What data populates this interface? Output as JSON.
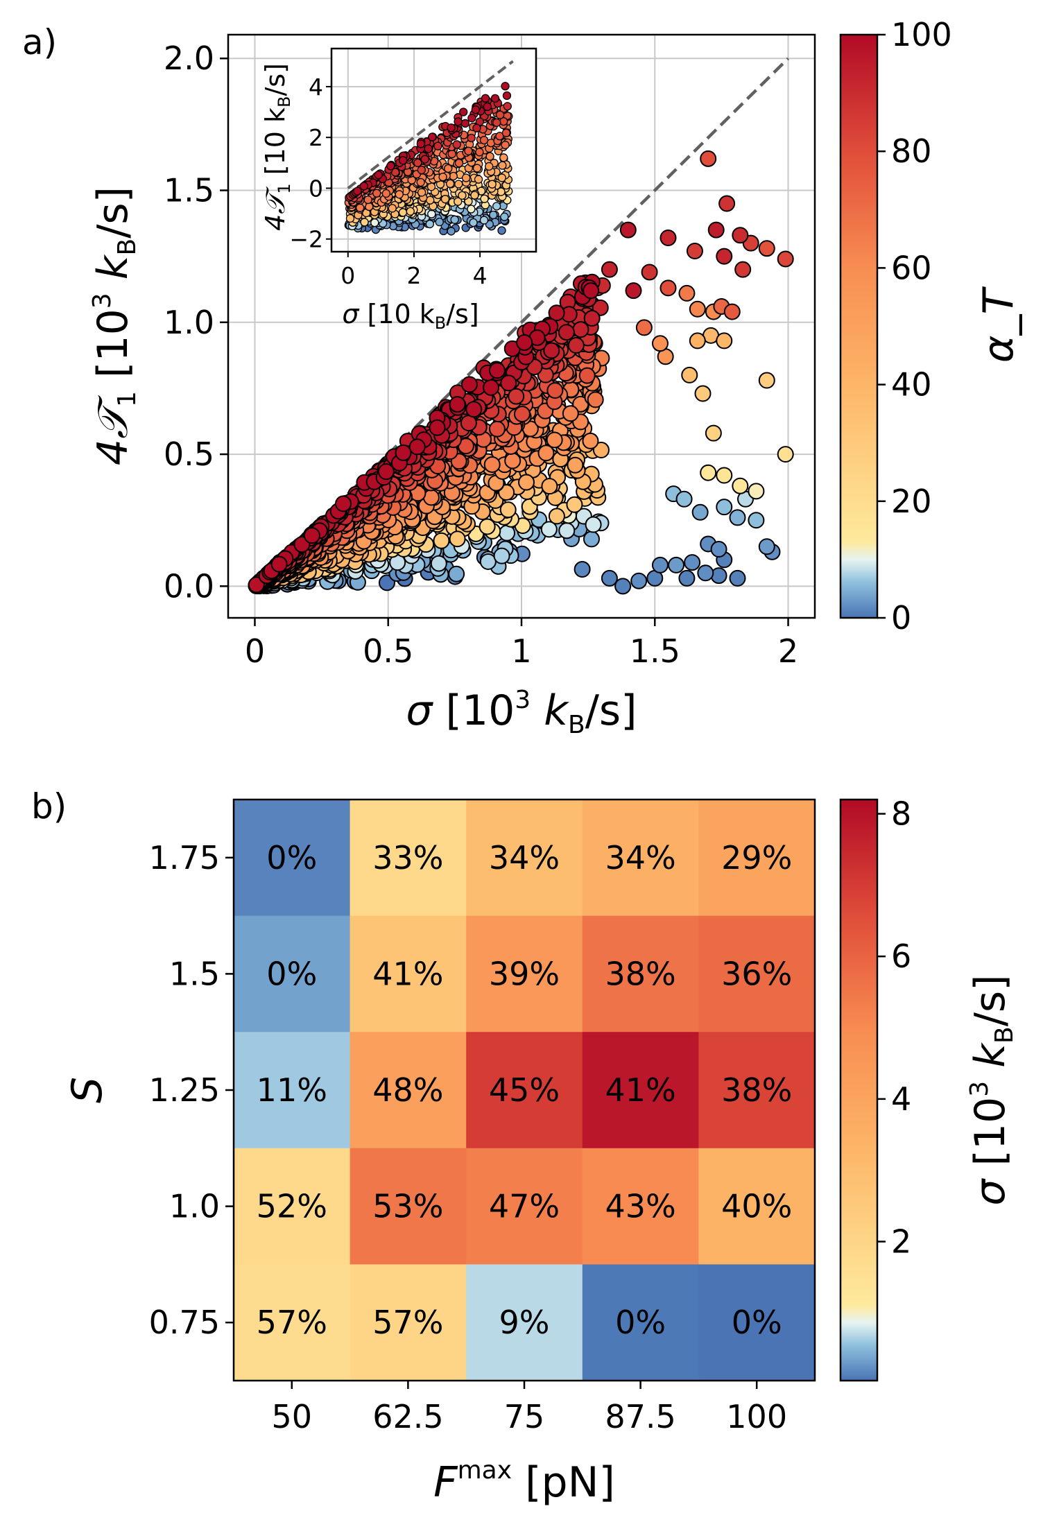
{
  "chart_data": [
    {
      "type": "scatter",
      "panel_label": "a)",
      "title": "",
      "xlabel": {
        "sym": "σ",
        "pre": " [10",
        "sup": "3",
        "mid": " k",
        "sub": "B",
        "post": "/s]"
      },
      "ylabel": {
        "sym": "4𝒯",
        "symsub": "1",
        "pre": " [10",
        "sup": "3",
        "mid": " k",
        "sub": "B",
        "post": "/s]"
      },
      "xlim": [
        -0.1,
        2.1
      ],
      "ylim": [
        -0.12,
        2.09
      ],
      "xticks": [
        0,
        0.5,
        1,
        1.5,
        2
      ],
      "xtick_labels": [
        "0",
        "0.5",
        "1",
        "1.5",
        "2"
      ],
      "yticks": [
        0,
        0.5,
        1,
        1.5,
        2
      ],
      "ytick_labels": [
        "0.0",
        "0.5",
        "1.0",
        "1.5",
        "2.0"
      ],
      "grid": true,
      "reference_line": {
        "style": "dashed",
        "from": [
          0,
          0
        ],
        "to": [
          2,
          2
        ]
      },
      "color_by": "α_T",
      "highlight_points": [
        {
          "x": 1.7,
          "y": 1.62,
          "c": 80
        },
        {
          "x": 1.55,
          "y": 1.32,
          "c": 92
        },
        {
          "x": 1.65,
          "y": 1.27,
          "c": 85
        },
        {
          "x": 1.73,
          "y": 1.35,
          "c": 95
        },
        {
          "x": 1.77,
          "y": 1.45,
          "c": 88
        },
        {
          "x": 1.82,
          "y": 1.33,
          "c": 90
        },
        {
          "x": 1.86,
          "y": 1.3,
          "c": 84
        },
        {
          "x": 1.92,
          "y": 1.28,
          "c": 78
        },
        {
          "x": 1.99,
          "y": 1.24,
          "c": 82
        },
        {
          "x": 1.83,
          "y": 1.2,
          "c": 86
        },
        {
          "x": 1.76,
          "y": 1.25,
          "c": 92
        },
        {
          "x": 1.4,
          "y": 1.35,
          "c": 96
        },
        {
          "x": 1.24,
          "y": 1.15,
          "c": 90
        },
        {
          "x": 1.33,
          "y": 1.2,
          "c": 93
        },
        {
          "x": 1.48,
          "y": 1.19,
          "c": 88
        },
        {
          "x": 1.55,
          "y": 1.13,
          "c": 80
        },
        {
          "x": 1.62,
          "y": 1.11,
          "c": 66
        },
        {
          "x": 1.66,
          "y": 1.05,
          "c": 62
        },
        {
          "x": 1.72,
          "y": 1.04,
          "c": 60
        },
        {
          "x": 1.75,
          "y": 1.06,
          "c": 72
        },
        {
          "x": 1.79,
          "y": 1.04,
          "c": 76
        },
        {
          "x": 1.66,
          "y": 0.93,
          "c": 42
        },
        {
          "x": 1.71,
          "y": 0.95,
          "c": 38
        },
        {
          "x": 1.76,
          "y": 0.93,
          "c": 40
        },
        {
          "x": 1.54,
          "y": 0.87,
          "c": 56
        },
        {
          "x": 1.63,
          "y": 0.8,
          "c": 36
        },
        {
          "x": 1.68,
          "y": 0.73,
          "c": 30
        },
        {
          "x": 1.72,
          "y": 0.58,
          "c": 26
        },
        {
          "x": 1.92,
          "y": 0.78,
          "c": 28
        },
        {
          "x": 1.99,
          "y": 0.5,
          "c": 18
        },
        {
          "x": 1.7,
          "y": 0.43,
          "c": 14
        },
        {
          "x": 1.76,
          "y": 0.42,
          "c": 16
        },
        {
          "x": 1.82,
          "y": 0.38,
          "c": 14
        },
        {
          "x": 1.88,
          "y": 0.36,
          "c": 12
        },
        {
          "x": 1.84,
          "y": 0.33,
          "c": 8
        },
        {
          "x": 1.76,
          "y": 0.3,
          "c": 6
        },
        {
          "x": 1.81,
          "y": 0.26,
          "c": 5
        },
        {
          "x": 1.88,
          "y": 0.25,
          "c": 6
        },
        {
          "x": 1.57,
          "y": 0.35,
          "c": 6
        },
        {
          "x": 1.61,
          "y": 0.33,
          "c": 6
        },
        {
          "x": 1.67,
          "y": 0.28,
          "c": 4
        },
        {
          "x": 1.7,
          "y": 0.16,
          "c": 2
        },
        {
          "x": 1.74,
          "y": 0.14,
          "c": 2
        },
        {
          "x": 1.76,
          "y": 0.1,
          "c": 1
        },
        {
          "x": 1.64,
          "y": 0.09,
          "c": 2
        },
        {
          "x": 1.58,
          "y": 0.08,
          "c": 3
        },
        {
          "x": 1.52,
          "y": 0.08,
          "c": 2
        },
        {
          "x": 1.5,
          "y": 0.03,
          "c": 1
        },
        {
          "x": 1.62,
          "y": 0.03,
          "c": 1
        },
        {
          "x": 1.69,
          "y": 0.05,
          "c": 2
        },
        {
          "x": 1.74,
          "y": 0.04,
          "c": 1
        },
        {
          "x": 1.81,
          "y": 0.03,
          "c": 1
        },
        {
          "x": 1.92,
          "y": 0.15,
          "c": 3
        },
        {
          "x": 1.94,
          "y": 0.13,
          "c": 2
        },
        {
          "x": 1.38,
          "y": 0.0,
          "c": 1
        },
        {
          "x": 1.33,
          "y": 0.03,
          "c": 1
        },
        {
          "x": 1.44,
          "y": 0.02,
          "c": 2
        },
        {
          "x": 1.42,
          "y": 1.12,
          "c": 96
        },
        {
          "x": 1.46,
          "y": 0.98,
          "c": 70
        },
        {
          "x": 1.52,
          "y": 0.92,
          "c": 58
        }
      ],
      "colorbar": {
        "label": "α_T",
        "min": 0,
        "max": 100,
        "ticks": [
          0,
          20,
          40,
          60,
          80,
          100
        ]
      },
      "inset": {
        "type": "scatter",
        "xlabel": {
          "sym": "σ",
          "pre": " [10 k",
          "sub": "B",
          "post": "/s]"
        },
        "ylabel": {
          "sym": "4𝒯",
          "symsub": "1",
          "pre": " [10 k",
          "sub": "B",
          "post": "/s]"
        },
        "xlim": [
          -0.5,
          5.7
        ],
        "ylim": [
          -2.5,
          5.5
        ],
        "xticks": [
          0,
          2,
          4
        ],
        "xtick_labels": [
          "0",
          "2",
          "4"
        ],
        "yticks": [
          -2,
          0,
          2,
          4
        ],
        "ytick_labels": [
          "−2",
          "0",
          "2",
          "4"
        ],
        "grid": true,
        "reference_line": {
          "style": "dashed",
          "from": [
            0,
            0
          ],
          "to": [
            5,
            5
          ]
        }
      }
    },
    {
      "type": "heatmap",
      "panel_label": "b)",
      "title": "",
      "xlabel": {
        "sym": "F",
        "sup": "max",
        "post": " [pN]"
      },
      "ylabel": "S",
      "x_categories": [
        "50",
        "62.5",
        "75",
        "87.5",
        "100"
      ],
      "y_categories": [
        "1.75",
        "1.5",
        "1.25",
        "1.0",
        "0.75"
      ],
      "values": [
        [
          0.15,
          1.8,
          3.0,
          3.5,
          4.0
        ],
        [
          0.35,
          2.7,
          4.5,
          5.6,
          5.8
        ],
        [
          0.6,
          4.2,
          7.0,
          7.9,
          6.8
        ],
        [
          1.8,
          5.5,
          5.3,
          5.0,
          3.4
        ],
        [
          1.7,
          2.0,
          0.7,
          0.08,
          0.05
        ]
      ],
      "cell_labels": [
        [
          "0%",
          "33%",
          "34%",
          "34%",
          "29%"
        ],
        [
          "0%",
          "41%",
          "39%",
          "38%",
          "36%"
        ],
        [
          "11%",
          "48%",
          "45%",
          "41%",
          "38%"
        ],
        [
          "52%",
          "53%",
          "47%",
          "43%",
          "40%"
        ],
        [
          "57%",
          "57%",
          "9%",
          "0%",
          "0%"
        ]
      ],
      "colorbar": {
        "label": {
          "sym": "σ",
          "pre": " [10",
          "sup": "3",
          "mid": " k",
          "sub": "B",
          "post": "/s]"
        },
        "min": 0.05,
        "max": 8.2,
        "ticks": [
          2,
          4,
          6,
          8
        ]
      }
    }
  ]
}
